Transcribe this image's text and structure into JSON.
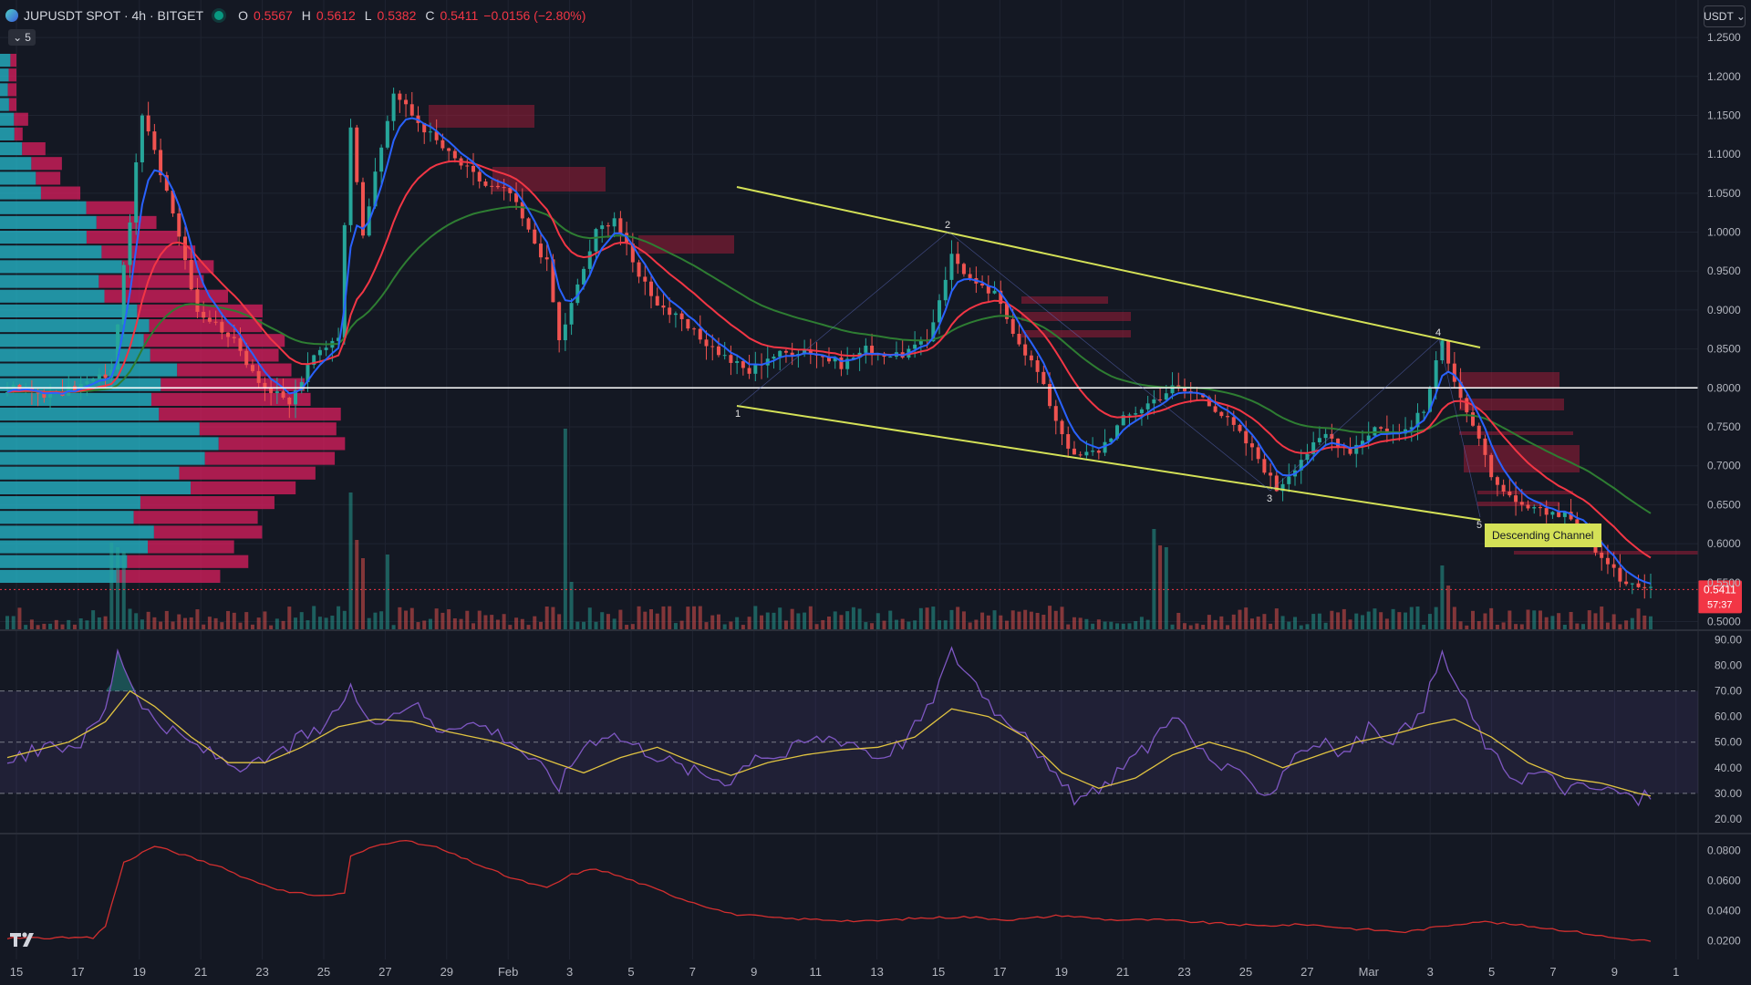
{
  "header": {
    "symbol": "JUPUSDT SPOT · 4h · BITGET",
    "o_label": "O",
    "o": "0.5567",
    "h_label": "H",
    "h": "0.5612",
    "l_label": "L",
    "l": "0.5382",
    "c_label": "C",
    "c": "0.5411",
    "change": "−0.0156 (−2.80%)"
  },
  "indicator_toggle": {
    "count": "5"
  },
  "currency": "USDT",
  "last_price": {
    "value": "0.5411",
    "countdown": "57:37"
  },
  "colors": {
    "background": "#141823",
    "up": "#26a69a",
    "down": "#ef5350",
    "ema_fast": "#2962ff",
    "ema_mid": "#f23645",
    "ema_slow": "#2e7d32",
    "channel": "#d4e157",
    "rsi": "#7e57c2",
    "rsi_ma": "#e0c341",
    "vol_profile_up": "#26c6da",
    "vol_profile_down": "#e91e63"
  },
  "chart_data": [
    {
      "type": "candlestick",
      "symbol": "JUPUSDT",
      "interval": "4h",
      "ylim": [
        0.49,
        1.27
      ],
      "y_ticks": [
        "1.2500",
        "1.2000",
        "1.1500",
        "1.1000",
        "1.0500",
        "1.0000",
        "0.9500",
        "0.9000",
        "0.8500",
        "0.8000",
        "0.7500",
        "0.7000",
        "0.6500",
        "0.6000",
        "0.5500",
        "0.5000"
      ],
      "x_ticks": [
        "15",
        "17",
        "19",
        "21",
        "23",
        "25",
        "27",
        "29",
        "Feb",
        "3",
        "5",
        "7",
        "9",
        "11",
        "13",
        "15",
        "17",
        "19",
        "21",
        "23",
        "25",
        "27",
        "Mar",
        "3",
        "5",
        "7",
        "9",
        "1"
      ],
      "anchors": [
        [
          0,
          0.8
        ],
        [
          8,
          0.79
        ],
        [
          17,
          0.82
        ],
        [
          22,
          1.15
        ],
        [
          27,
          1.03
        ],
        [
          31,
          0.9
        ],
        [
          36,
          0.87
        ],
        [
          42,
          0.8
        ],
        [
          46,
          0.78
        ],
        [
          50,
          0.84
        ],
        [
          54,
          0.87
        ],
        [
          56,
          1.14
        ],
        [
          58,
          1.0
        ],
        [
          63,
          1.18
        ],
        [
          66,
          1.15
        ],
        [
          72,
          1.1
        ],
        [
          78,
          1.06
        ],
        [
          82,
          1.05
        ],
        [
          85,
          1.0
        ],
        [
          88,
          0.96
        ],
        [
          90,
          0.86
        ],
        [
          93,
          0.93
        ],
        [
          96,
          1.0
        ],
        [
          99,
          1.02
        ],
        [
          102,
          0.96
        ],
        [
          106,
          0.91
        ],
        [
          112,
          0.87
        ],
        [
          117,
          0.84
        ],
        [
          121,
          0.82
        ],
        [
          124,
          0.84
        ],
        [
          130,
          0.85
        ],
        [
          136,
          0.83
        ],
        [
          140,
          0.85
        ],
        [
          145,
          0.84
        ],
        [
          150,
          0.86
        ],
        [
          154,
          0.97
        ],
        [
          158,
          0.93
        ],
        [
          161,
          0.92
        ],
        [
          165,
          0.86
        ],
        [
          168,
          0.82
        ],
        [
          171,
          0.76
        ],
        [
          174,
          0.71
        ],
        [
          178,
          0.72
        ],
        [
          182,
          0.76
        ],
        [
          186,
          0.78
        ],
        [
          190,
          0.8
        ],
        [
          195,
          0.79
        ],
        [
          200,
          0.75
        ],
        [
          204,
          0.71
        ],
        [
          207,
          0.67
        ],
        [
          211,
          0.71
        ],
        [
          215,
          0.74
        ],
        [
          219,
          0.72
        ],
        [
          223,
          0.75
        ],
        [
          227,
          0.74
        ],
        [
          231,
          0.77
        ],
        [
          234,
          0.86
        ],
        [
          237,
          0.79
        ],
        [
          240,
          0.73
        ],
        [
          243,
          0.67
        ],
        [
          246,
          0.65
        ],
        [
          250,
          0.64
        ],
        [
          254,
          0.64
        ],
        [
          257,
          0.62
        ],
        [
          260,
          0.58
        ],
        [
          263,
          0.555
        ],
        [
          266,
          0.55
        ],
        [
          268,
          0.545
        ]
      ],
      "moving_averages": [
        "fast (blue)",
        "mid (red)",
        "slow (green)"
      ]
    },
    {
      "type": "bar",
      "name": "volume",
      "spikes": [
        [
          17,
          95
        ],
        [
          18,
          90
        ],
        [
          19,
          85
        ],
        [
          56,
          150
        ],
        [
          57,
          98
        ],
        [
          58,
          78
        ],
        [
          62,
          82
        ],
        [
          91,
          220
        ],
        [
          92,
          52
        ],
        [
          187,
          110
        ],
        [
          188,
          92
        ],
        [
          189,
          90
        ],
        [
          234,
          70
        ],
        [
          235,
          48
        ]
      ]
    },
    {
      "type": "line",
      "name": "RSI",
      "ylim": [
        15,
        93
      ],
      "y_ticks": [
        "90.00",
        "80.00",
        "70.00",
        "60.00",
        "50.00",
        "40.00",
        "30.00",
        "20.00"
      ],
      "bands": {
        "upper": 70,
        "mid": 50,
        "lower": 30
      },
      "anchors": [
        [
          0,
          44
        ],
        [
          6,
          47
        ],
        [
          12,
          50
        ],
        [
          16,
          62
        ],
        [
          18,
          87
        ],
        [
          20,
          74
        ],
        [
          24,
          58
        ],
        [
          28,
          52
        ],
        [
          32,
          47
        ],
        [
          36,
          42
        ],
        [
          40,
          40
        ],
        [
          44,
          45
        ],
        [
          48,
          52
        ],
        [
          52,
          55
        ],
        [
          56,
          72
        ],
        [
          58,
          60
        ],
        [
          62,
          60
        ],
        [
          66,
          66
        ],
        [
          70,
          55
        ],
        [
          74,
          58
        ],
        [
          78,
          56
        ],
        [
          82,
          51
        ],
        [
          86,
          42
        ],
        [
          90,
          33
        ],
        [
          94,
          49
        ],
        [
          98,
          54
        ],
        [
          102,
          49
        ],
        [
          106,
          45
        ],
        [
          110,
          40
        ],
        [
          114,
          37
        ],
        [
          118,
          35
        ],
        [
          122,
          46
        ],
        [
          126,
          44
        ],
        [
          130,
          50
        ],
        [
          134,
          52
        ],
        [
          138,
          50
        ],
        [
          142,
          44
        ],
        [
          146,
          50
        ],
        [
          150,
          62
        ],
        [
          154,
          85
        ],
        [
          158,
          73
        ],
        [
          162,
          60
        ],
        [
          166,
          55
        ],
        [
          170,
          38
        ],
        [
          174,
          28
        ],
        [
          178,
          30
        ],
        [
          182,
          42
        ],
        [
          186,
          48
        ],
        [
          190,
          62
        ],
        [
          194,
          48
        ],
        [
          198,
          40
        ],
        [
          202,
          35
        ],
        [
          206,
          30
        ],
        [
          210,
          46
        ],
        [
          214,
          50
        ],
        [
          218,
          45
        ],
        [
          222,
          55
        ],
        [
          226,
          52
        ],
        [
          230,
          58
        ],
        [
          234,
          84
        ],
        [
          238,
          64
        ],
        [
          242,
          45
        ],
        [
          246,
          36
        ],
        [
          250,
          38
        ],
        [
          254,
          32
        ],
        [
          258,
          32
        ],
        [
          262,
          31
        ],
        [
          266,
          27
        ],
        [
          268,
          30
        ]
      ],
      "ma_anchors": [
        [
          0,
          44
        ],
        [
          10,
          50
        ],
        [
          16,
          58
        ],
        [
          20,
          70
        ],
        [
          24,
          64
        ],
        [
          30,
          52
        ],
        [
          36,
          42
        ],
        [
          42,
          42
        ],
        [
          48,
          48
        ],
        [
          54,
          56
        ],
        [
          60,
          59
        ],
        [
          66,
          58
        ],
        [
          72,
          54
        ],
        [
          80,
          50
        ],
        [
          88,
          43
        ],
        [
          94,
          38
        ],
        [
          100,
          44
        ],
        [
          106,
          48
        ],
        [
          112,
          42
        ],
        [
          118,
          37
        ],
        [
          124,
          42
        ],
        [
          130,
          45
        ],
        [
          136,
          47
        ],
        [
          142,
          48
        ],
        [
          148,
          52
        ],
        [
          154,
          63
        ],
        [
          160,
          60
        ],
        [
          166,
          52
        ],
        [
          172,
          38
        ],
        [
          178,
          32
        ],
        [
          184,
          36
        ],
        [
          190,
          45
        ],
        [
          196,
          50
        ],
        [
          202,
          46
        ],
        [
          208,
          40
        ],
        [
          214,
          45
        ],
        [
          220,
          50
        ],
        [
          226,
          53
        ],
        [
          232,
          57
        ],
        [
          236,
          59
        ],
        [
          242,
          52
        ],
        [
          248,
          42
        ],
        [
          254,
          36
        ],
        [
          260,
          34
        ],
        [
          266,
          30
        ],
        [
          268,
          29
        ]
      ]
    },
    {
      "type": "line",
      "name": "volatility",
      "ylim": [
        0.015,
        0.09
      ],
      "y_ticks": [
        "0.0800",
        "0.0600",
        "0.0400",
        "0.0200"
      ],
      "anchors": [
        [
          0,
          0.022
        ],
        [
          14,
          0.022
        ],
        [
          16,
          0.03
        ],
        [
          19,
          0.072
        ],
        [
          24,
          0.083
        ],
        [
          28,
          0.078
        ],
        [
          34,
          0.07
        ],
        [
          40,
          0.06
        ],
        [
          46,
          0.052
        ],
        [
          52,
          0.05
        ],
        [
          55,
          0.052
        ],
        [
          56,
          0.076
        ],
        [
          60,
          0.083
        ],
        [
          64,
          0.087
        ],
        [
          70,
          0.082
        ],
        [
          76,
          0.072
        ],
        [
          82,
          0.062
        ],
        [
          88,
          0.055
        ],
        [
          92,
          0.064
        ],
        [
          96,
          0.068
        ],
        [
          102,
          0.06
        ],
        [
          110,
          0.048
        ],
        [
          118,
          0.038
        ],
        [
          126,
          0.035
        ],
        [
          134,
          0.034
        ],
        [
          140,
          0.033
        ],
        [
          148,
          0.035
        ],
        [
          156,
          0.036
        ],
        [
          164,
          0.034
        ],
        [
          172,
          0.037
        ],
        [
          180,
          0.034
        ],
        [
          188,
          0.034
        ],
        [
          196,
          0.032
        ],
        [
          204,
          0.03
        ],
        [
          212,
          0.031
        ],
        [
          220,
          0.028
        ],
        [
          228,
          0.026
        ],
        [
          236,
          0.031
        ],
        [
          240,
          0.033
        ],
        [
          248,
          0.03
        ],
        [
          256,
          0.026
        ],
        [
          262,
          0.022
        ],
        [
          268,
          0.02
        ]
      ]
    }
  ],
  "annotations": {
    "channel_label": "Descending Channel",
    "wave_points": [
      "1",
      "2",
      "3",
      "4",
      "5"
    ],
    "support_level": 0.8
  }
}
